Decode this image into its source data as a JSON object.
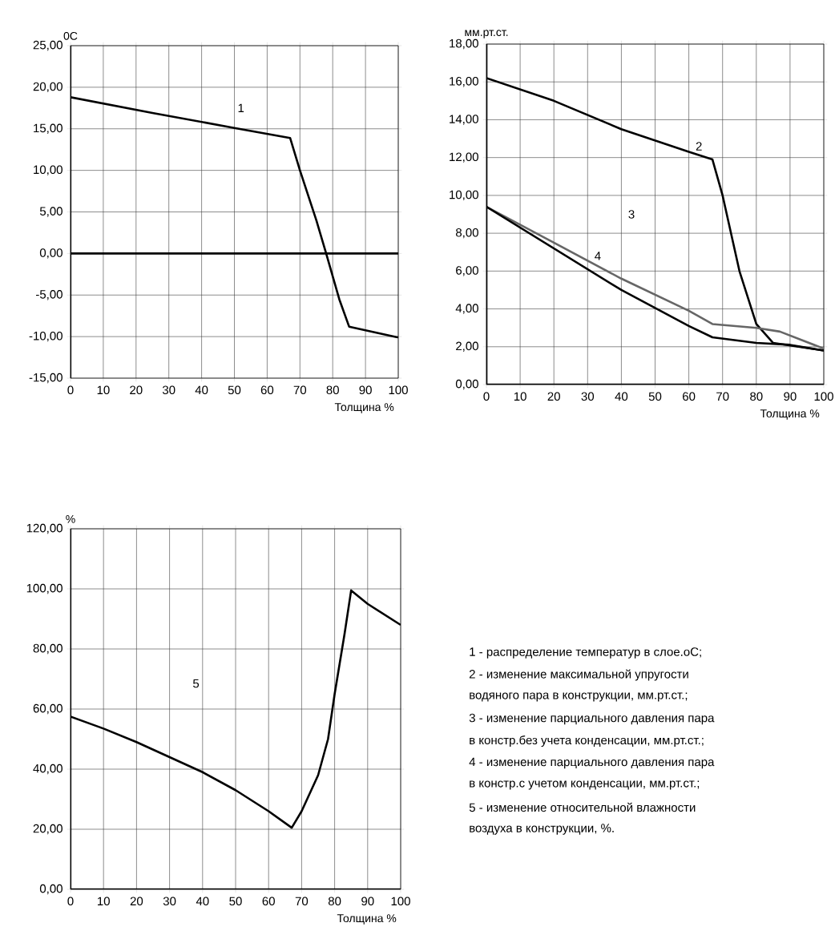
{
  "chart_data": [
    {
      "type": "line",
      "ylabel": "0C",
      "xlabel": "Толщина %",
      "grid": true,
      "xlim": [
        0,
        100
      ],
      "xticks": [
        0,
        10,
        20,
        30,
        40,
        50,
        60,
        70,
        80,
        90,
        100
      ],
      "ylim": [
        -15,
        25
      ],
      "yticks": [
        {
          "value": -15,
          "label": "-15,00"
        },
        {
          "value": -10,
          "label": "-10,00"
        },
        {
          "value": -5,
          "label": "-5,00"
        },
        {
          "value": 0,
          "label": "0,00"
        },
        {
          "value": 5,
          "label": "5,00"
        },
        {
          "value": 10,
          "label": "10,00"
        },
        {
          "value": 15,
          "label": "15,00"
        },
        {
          "value": 20,
          "label": "20,00"
        },
        {
          "value": 25,
          "label": "25,00"
        }
      ],
      "series": [
        {
          "color": "#000000",
          "x": [
            0,
            25,
            50,
            67,
            70,
            75,
            78,
            82,
            85,
            100
          ],
          "values": [
            18.8,
            16.9,
            15.1,
            13.9,
            10,
            4,
            0,
            -5.5,
            -8.8,
            -10.1
          ]
        }
      ],
      "ref_lines": [
        {
          "axis": "y",
          "value": 0
        }
      ],
      "annotations": [
        {
          "text": "1",
          "x": 52,
          "y": 17.5
        }
      ]
    },
    {
      "type": "line",
      "ylabel": "мм.рт.ст.",
      "xlabel": "Толщина %",
      "grid": true,
      "xlim": [
        0,
        100
      ],
      "xticks": [
        0,
        10,
        20,
        30,
        40,
        50,
        60,
        70,
        80,
        90,
        100
      ],
      "ylim": [
        0,
        18
      ],
      "yticks": [
        {
          "value": 0,
          "label": "0,00"
        },
        {
          "value": 2,
          "label": "2,00"
        },
        {
          "value": 4,
          "label": "4,00"
        },
        {
          "value": 6,
          "label": "6,00"
        },
        {
          "value": 8,
          "label": "8,00"
        },
        {
          "value": 10,
          "label": "10,00"
        },
        {
          "value": 12,
          "label": "12,00"
        },
        {
          "value": 14,
          "label": "14,00"
        },
        {
          "value": 16,
          "label": "16,00"
        },
        {
          "value": 18,
          "label": "18,00"
        }
      ],
      "series": [
        {
          "color": "#000000",
          "x": [
            0,
            20,
            40,
            60,
            67,
            70,
            75,
            80,
            85,
            100
          ],
          "values": [
            16.2,
            15,
            13.5,
            12.3,
            11.9,
            10,
            6,
            3.2,
            2.2,
            1.8
          ]
        },
        {
          "color": "#666666",
          "x": [
            0,
            20,
            40,
            60,
            67,
            80,
            87,
            100
          ],
          "values": [
            9.4,
            7.5,
            5.6,
            3.9,
            3.2,
            3,
            2.8,
            1.9
          ]
        },
        {
          "color": "#000000",
          "x": [
            0,
            20,
            40,
            60,
            67,
            80,
            90,
            100
          ],
          "values": [
            9.4,
            7.2,
            5,
            3.1,
            2.5,
            2.2,
            2.1,
            1.8
          ]
        }
      ],
      "annotations": [
        {
          "text": "2",
          "x": 63,
          "y": 12.6
        },
        {
          "text": "3",
          "x": 43,
          "y": 9
        },
        {
          "text": "4",
          "x": 33,
          "y": 6.8
        }
      ]
    },
    {
      "type": "line",
      "ylabel": "%",
      "xlabel": "Толщина %",
      "grid": true,
      "xlim": [
        0,
        100
      ],
      "xticks": [
        0,
        10,
        20,
        30,
        40,
        50,
        60,
        70,
        80,
        90,
        100
      ],
      "ylim": [
        0,
        120
      ],
      "yticks": [
        {
          "value": 0,
          "label": "0,00"
        },
        {
          "value": 20,
          "label": "20,00"
        },
        {
          "value": 40,
          "label": "40,00"
        },
        {
          "value": 60,
          "label": "60,00"
        },
        {
          "value": 80,
          "label": "80,00"
        },
        {
          "value": 100,
          "label": "100,00"
        },
        {
          "value": 120,
          "label": "120,00"
        }
      ],
      "series": [
        {
          "color": "#000000",
          "x": [
            0,
            10,
            20,
            30,
            40,
            50,
            60,
            67,
            70,
            75,
            78,
            80,
            83,
            85,
            90,
            100
          ],
          "values": [
            57.5,
            53.5,
            49,
            44,
            39,
            33,
            26,
            20.5,
            26,
            38,
            50,
            65,
            85,
            99.5,
            95,
            88
          ]
        }
      ],
      "annotations": [
        {
          "text": "5",
          "x": 38,
          "y": 68.5
        }
      ]
    },
    {
      "type": "other",
      "annotations": [
        "1 - распределение температур в слое.оС;",
        "2 - изменение максимальной упругости",
        "водяного пара в конструкции, мм.рт.ст.;",
        "3 - изменение парциального давления пара",
        "в констр.без учета конденсации, мм.рт.ст.;",
        "4 - изменение парциального давления пара",
        "в констр.с учетом конденсации, мм.рт.ст.;",
        "5 - изменение относительной влажности",
        "воздуха в конструкции, %."
      ]
    }
  ]
}
